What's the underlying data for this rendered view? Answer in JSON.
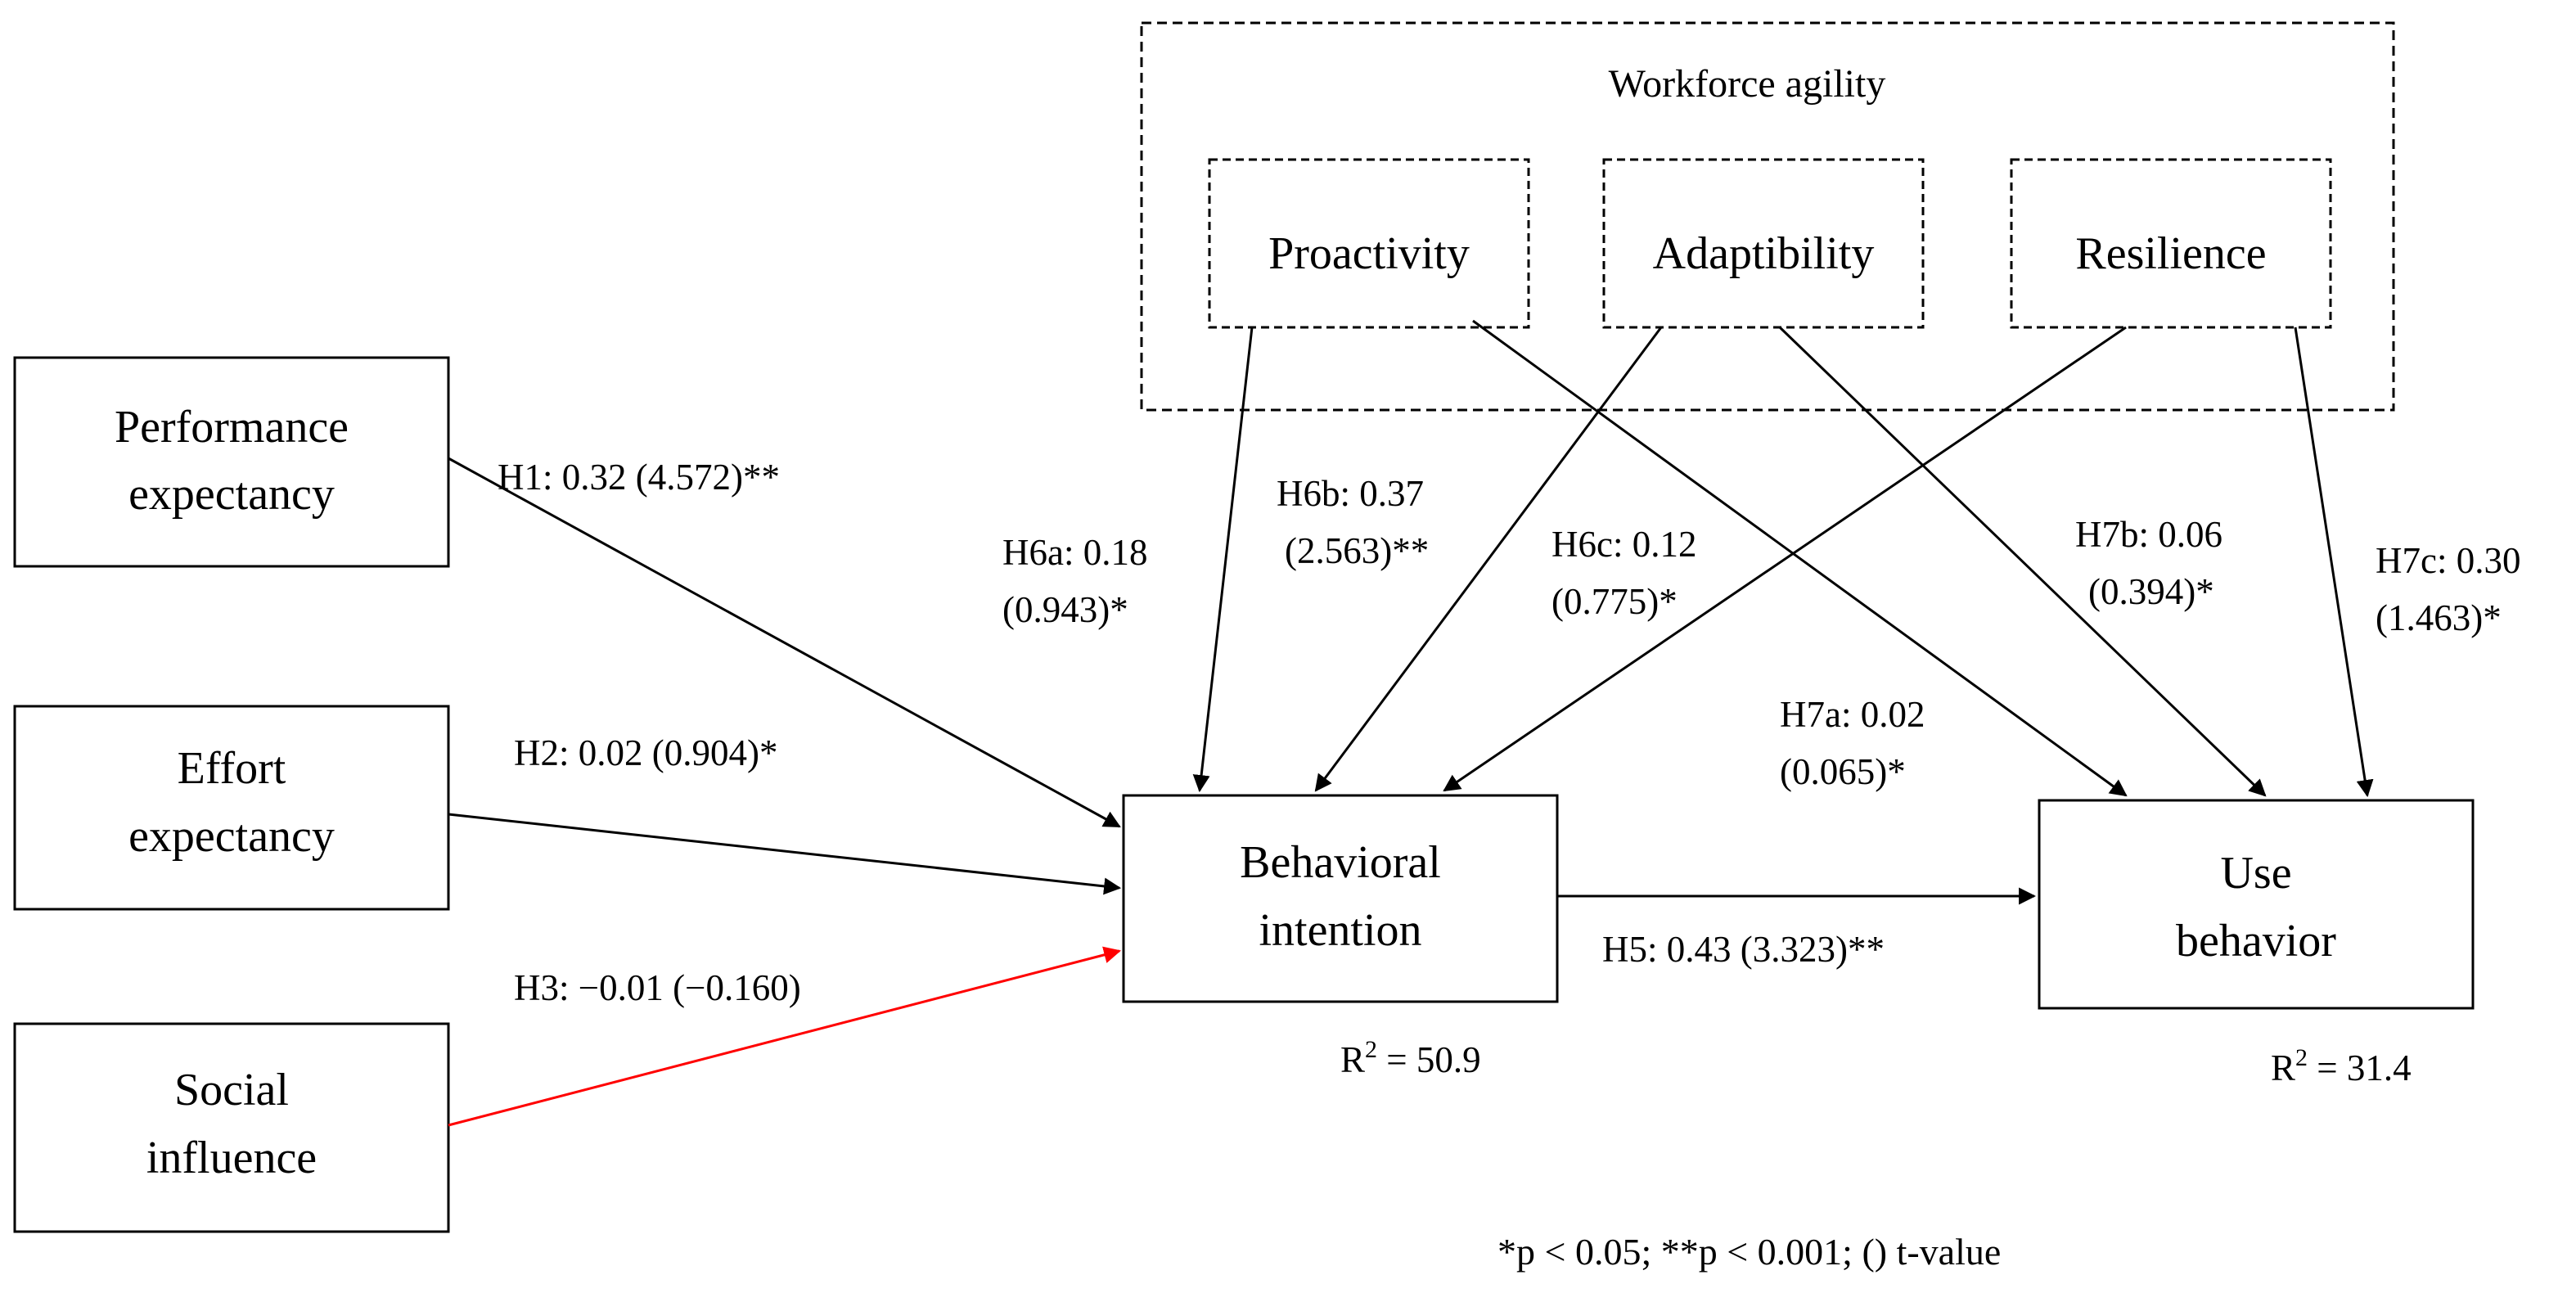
{
  "group": {
    "title": "Workforce agility"
  },
  "constructs": {
    "performance_expectancy": {
      "line1": "Performance",
      "line2": "expectancy"
    },
    "effort_expectancy": {
      "line1": "Effort",
      "line2": "expectancy"
    },
    "social_influence": {
      "line1": "Social",
      "line2": "influence"
    },
    "behavioral_intention": {
      "line1": "Behavioral",
      "line2": "intention",
      "r2": "50.9"
    },
    "use_behavior": {
      "line1": "Use",
      "line2": "behavior",
      "r2": "31.4"
    },
    "proactivity": {
      "label": "Proactivity"
    },
    "adaptibility": {
      "label": "Adaptibility"
    },
    "resilience": {
      "label": "Resilience"
    }
  },
  "r2_prefix": "R",
  "r2_sup": "2",
  "r2_eq": " = ",
  "paths": {
    "h1": {
      "line1": "H1: 0.32 (4.572)**"
    },
    "h2": {
      "line1": "H2: 0.02 (0.904)*"
    },
    "h3": {
      "line1": "H3: −0.01 (−0.160)",
      "color": "#ff0000"
    },
    "h5": {
      "line1": "H5: 0.43 (3.323)**"
    },
    "h6a": {
      "line1": "H6a: 0.18",
      "line2": "(0.943)*"
    },
    "h6b": {
      "line1": "H6b: 0.37",
      "line2": "(2.563)**"
    },
    "h6c": {
      "line1": "H6c: 0.12",
      "line2": "(0.775)*"
    },
    "h7a": {
      "line1": "H7a: 0.02",
      "line2": "(0.065)*"
    },
    "h7b": {
      "line1": "H7b: 0.06",
      "line2": "(0.394)*"
    },
    "h7c": {
      "line1": "H7c: 0.30",
      "line2": "(1.463)*"
    }
  },
  "footnote": "*p < 0.05; **p < 0.001; () t-value",
  "colors": {
    "default_line": "#000000",
    "non_significant": "#ff0000"
  }
}
